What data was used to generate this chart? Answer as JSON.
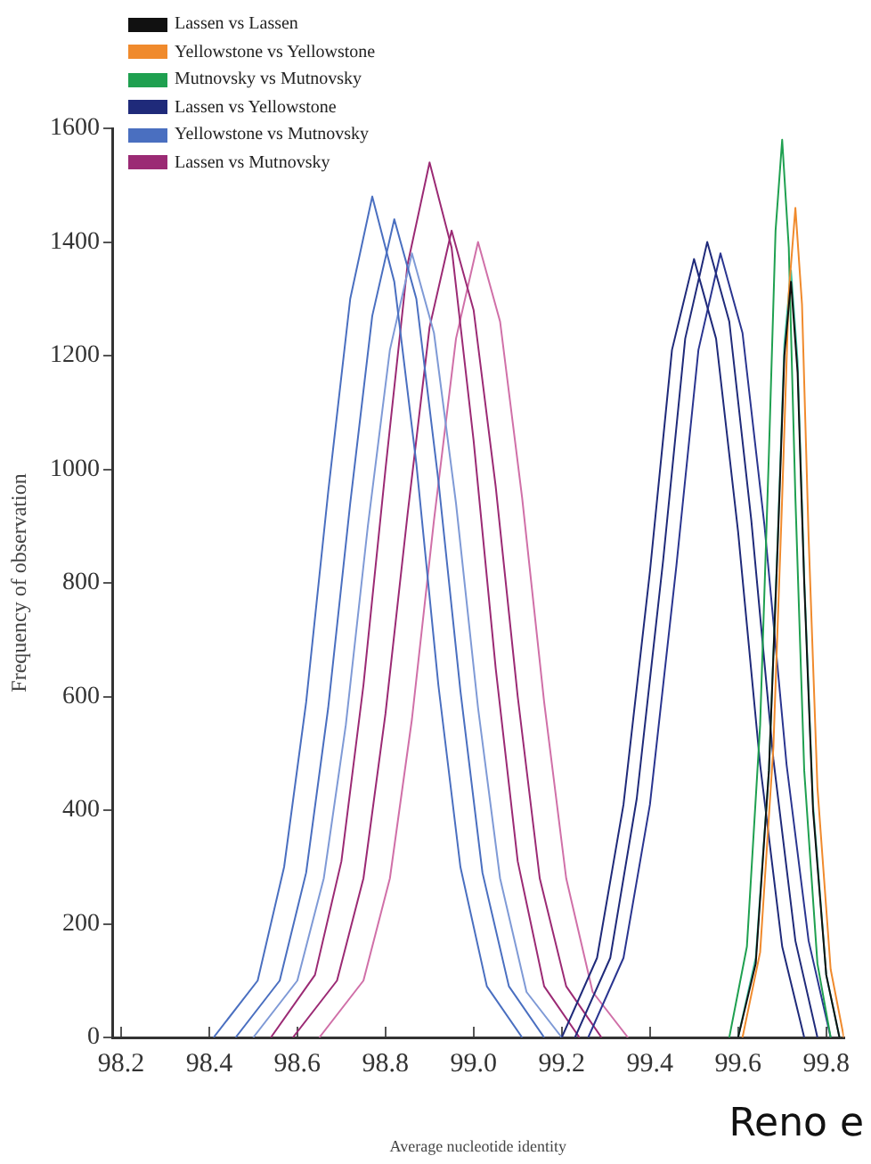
{
  "chart_data": {
    "type": "line",
    "xlabel": "Average nucleotide identity",
    "ylabel": "Frequency of observation",
    "annotations": [
      "Reno e"
    ],
    "xlim": [
      98.18,
      99.84
    ],
    "xticks": [
      {
        "value": 98.2,
        "label": "98.2"
      },
      {
        "value": 98.4,
        "label": "98.4"
      },
      {
        "value": 98.6,
        "label": "98.6"
      },
      {
        "value": 98.8,
        "label": "98.8"
      },
      {
        "value": 99.0,
        "label": "99.0"
      },
      {
        "value": 99.2,
        "label": "99.2"
      },
      {
        "value": 99.4,
        "label": "99.4"
      },
      {
        "value": 99.6,
        "label": "99.6"
      },
      {
        "value": 99.8,
        "label": "99.8"
      }
    ],
    "ylim": [
      0,
      1600
    ],
    "yticks": [
      0,
      200,
      400,
      600,
      800,
      1000,
      1200,
      1400,
      1600
    ],
    "legend": "top left",
    "grid": false,
    "marker": "none",
    "line_style": "solid",
    "series": [
      {
        "name": "Lassen vs Lassen",
        "color": "#111111",
        "x": [
          99.6,
          99.64,
          99.67,
          99.69,
          99.705,
          99.72,
          99.735,
          99.75,
          99.77,
          99.8,
          99.83
        ],
        "values": [
          0,
          130,
          470,
          870,
          1200,
          1330,
          1170,
          800,
          400,
          110,
          0
        ]
      },
      {
        "name": "Yellowstone vs Yellowstone",
        "color": "#f08a2c",
        "x": [
          99.61,
          99.65,
          99.68,
          99.7,
          99.715,
          99.73,
          99.745,
          99.76,
          99.78,
          99.81,
          99.84
        ],
        "values": [
          0,
          150,
          510,
          950,
          1310,
          1460,
          1290,
          880,
          440,
          120,
          0
        ]
      },
      {
        "name": "Mutnovsky vs Mutnovsky",
        "color": "#1fa050",
        "x": [
          99.58,
          99.62,
          99.65,
          99.67,
          99.685,
          99.7,
          99.715,
          99.73,
          99.75,
          99.78,
          99.81
        ],
        "values": [
          0,
          160,
          550,
          1030,
          1420,
          1580,
          1390,
          950,
          470,
          130,
          0
        ]
      },
      {
        "color": "#3cc0a0",
        "x": [
          99.6,
          99.64,
          99.67,
          99.69,
          99.705,
          99.72,
          99.735,
          99.75,
          99.77,
          99.8,
          99.83
        ],
        "values": [
          0,
          140,
          470,
          880,
          1220,
          1350,
          1190,
          810,
          410,
          110,
          0
        ]
      },
      {
        "name": "Lassen vs Yellowstone",
        "color": "#1f2a7a",
        "x": [
          99.2,
          99.28,
          99.34,
          99.4,
          99.45,
          99.5,
          99.55,
          99.6,
          99.65,
          99.7,
          99.75
        ],
        "values": [
          0,
          140,
          410,
          820,
          1210,
          1370,
          1230,
          890,
          480,
          160,
          0
        ]
      },
      {
        "color": "#1f2a7a",
        "x": [
          99.23,
          99.31,
          99.37,
          99.43,
          99.48,
          99.53,
          99.58,
          99.63,
          99.68,
          99.73,
          99.78
        ],
        "values": [
          0,
          140,
          420,
          840,
          1230,
          1400,
          1260,
          910,
          490,
          170,
          0
        ]
      },
      {
        "color": "#2a3590",
        "x": [
          99.26,
          99.34,
          99.4,
          99.46,
          99.51,
          99.56,
          99.61,
          99.66,
          99.71,
          99.76,
          99.81
        ],
        "values": [
          0,
          140,
          410,
          830,
          1210,
          1380,
          1240,
          900,
          480,
          170,
          0
        ]
      },
      {
        "name": "Yellowstone vs Mutnovsky",
        "color": "#4a6fc0",
        "x": [
          98.41,
          98.51,
          98.57,
          98.62,
          98.67,
          98.72,
          98.77,
          98.82,
          98.87,
          98.92,
          98.97,
          99.03,
          99.11
        ],
        "values": [
          0,
          100,
          300,
          590,
          960,
          1300,
          1480,
          1330,
          1010,
          620,
          300,
          90,
          0
        ]
      },
      {
        "color": "#4a6fc0",
        "x": [
          98.46,
          98.56,
          98.62,
          98.67,
          98.72,
          98.77,
          98.82,
          98.87,
          98.92,
          98.97,
          99.02,
          99.08,
          99.16
        ],
        "values": [
          0,
          100,
          290,
          580,
          940,
          1270,
          1440,
          1300,
          980,
          610,
          290,
          90,
          0
        ]
      },
      {
        "color": "#7f9ad6",
        "x": [
          98.5,
          98.6,
          98.66,
          98.71,
          98.76,
          98.81,
          98.86,
          98.91,
          98.96,
          99.01,
          99.06,
          99.12,
          99.2
        ],
        "values": [
          0,
          100,
          280,
          550,
          900,
          1210,
          1380,
          1240,
          940,
          580,
          280,
          80,
          0
        ]
      },
      {
        "name": "Lassen vs Mutnovsky",
        "color": "#9b2a74",
        "x": [
          98.54,
          98.64,
          98.7,
          98.75,
          98.8,
          98.85,
          98.9,
          98.95,
          99.0,
          99.05,
          99.1,
          99.16,
          99.24
        ],
        "values": [
          0,
          110,
          310,
          620,
          1000,
          1360,
          1540,
          1390,
          1050,
          650,
          310,
          90,
          0
        ]
      },
      {
        "color": "#9b2a74",
        "x": [
          98.59,
          98.69,
          98.75,
          98.8,
          98.85,
          98.9,
          98.95,
          99.0,
          99.05,
          99.1,
          99.15,
          99.21,
          99.29
        ],
        "values": [
          0,
          100,
          280,
          570,
          920,
          1250,
          1420,
          1280,
          970,
          600,
          280,
          90,
          0
        ]
      },
      {
        "color": "#d070a8",
        "x": [
          98.65,
          98.75,
          98.81,
          98.86,
          98.91,
          98.96,
          99.01,
          99.06,
          99.11,
          99.16,
          99.21,
          99.27,
          99.35
        ],
        "values": [
          0,
          100,
          280,
          560,
          910,
          1230,
          1400,
          1260,
          950,
          590,
          280,
          80,
          0
        ]
      }
    ]
  }
}
